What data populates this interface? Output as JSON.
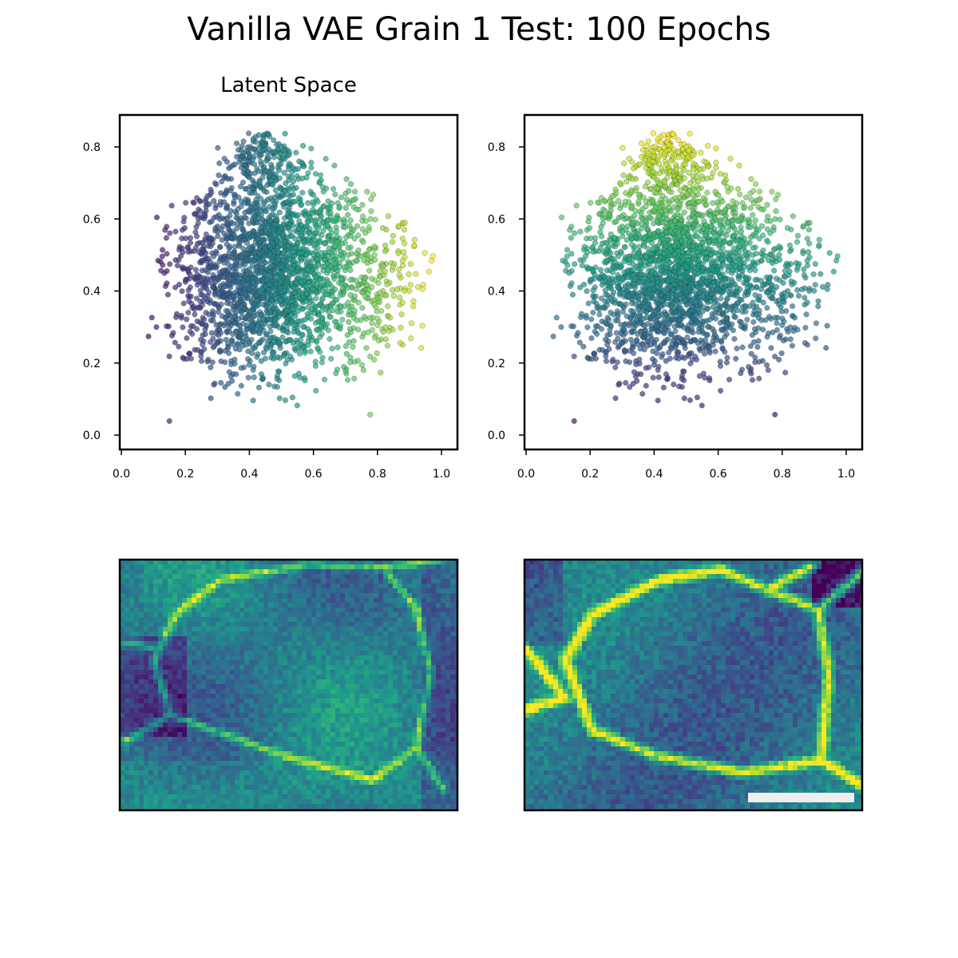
{
  "title": "Vanilla VAE Grain 1 Test: 100 Epochs",
  "subtitle": "Latent Space",
  "colors": {
    "viridis": [
      "#440154",
      "#482878",
      "#3e4989",
      "#31688e",
      "#26828e",
      "#1f9e89",
      "#35b779",
      "#6ece58",
      "#b5de2b",
      "#fde725"
    ],
    "scale_bar": "#eeeeee"
  },
  "chart_data": [
    {
      "type": "scatter",
      "title": "Latent Space",
      "xlabel": "",
      "ylabel": "",
      "xlim": [
        0.0,
        1.0
      ],
      "ylim": [
        0.0,
        0.8
      ],
      "xticks": [
        "0.0",
        "0.2",
        "0.4",
        "0.6",
        "0.8",
        "1.0"
      ],
      "yticks": [
        "0.0",
        "0.2",
        "0.4",
        "0.6",
        "0.8"
      ],
      "color_by": "x",
      "points_approx": 9000,
      "grid": false
    },
    {
      "type": "scatter",
      "title": "",
      "xlabel": "",
      "ylabel": "",
      "xlim": [
        0.0,
        1.0
      ],
      "ylim": [
        0.0,
        0.8
      ],
      "xticks": [
        "0.0",
        "0.2",
        "0.4",
        "0.6",
        "0.8",
        "1.0"
      ],
      "yticks": [
        "0.0",
        "0.2",
        "0.4",
        "0.6",
        "0.8"
      ],
      "color_by": "y",
      "points_approx": 9000,
      "grid": false
    },
    {
      "type": "heatmap",
      "title": "",
      "colormap": "viridis",
      "description_feature": "grain boundary map colored by latent dimension 1"
    },
    {
      "type": "heatmap",
      "title": "",
      "colormap": "viridis",
      "has_scale_bar": true
    }
  ]
}
